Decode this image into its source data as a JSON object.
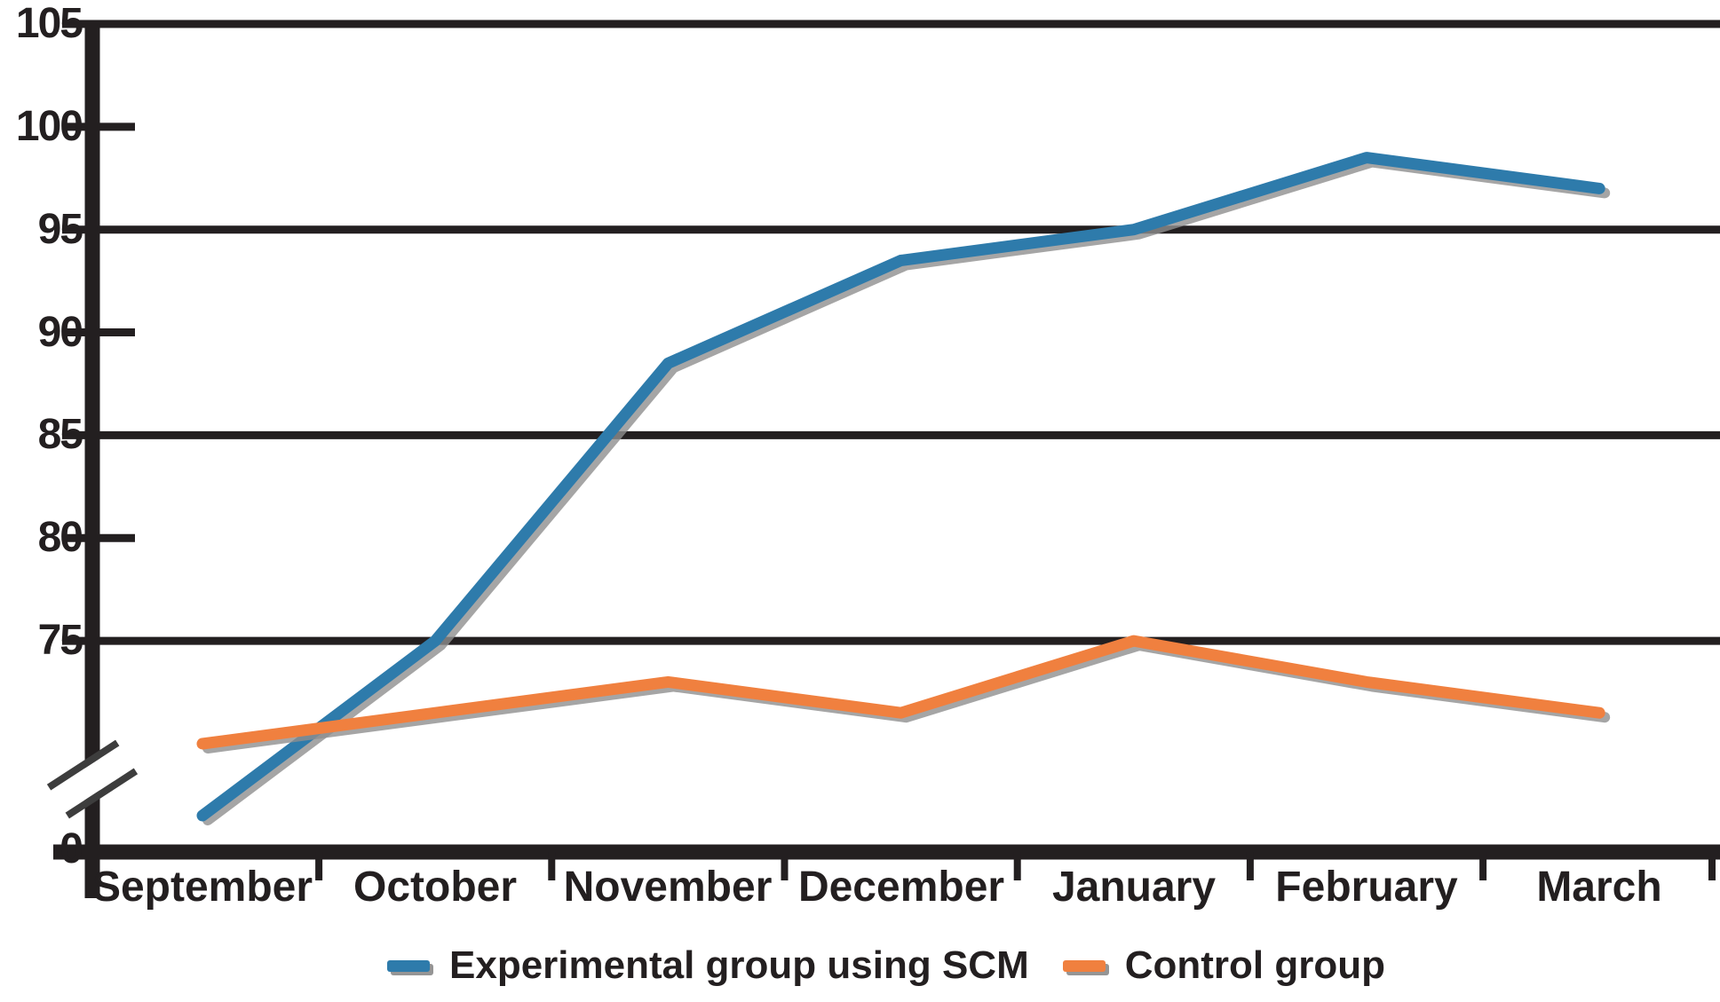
{
  "chart_data": {
    "type": "line",
    "title": "",
    "xlabel": "",
    "ylabel": "",
    "categories": [
      "September",
      "October",
      "November",
      "December",
      "January",
      "February",
      "March"
    ],
    "series": [
      {
        "name": "Experimental group using SCM",
        "color": "#2e7bab",
        "values": [
          66.5,
          75,
          88.5,
          93.5,
          95,
          98.5,
          97
        ]
      },
      {
        "name": "Control group",
        "color": "#f0803f",
        "values": [
          70,
          71.5,
          73,
          71.5,
          75,
          73,
          71.5
        ]
      }
    ],
    "y_axis": {
      "tick_labels": [
        "105",
        "100",
        "95",
        "90",
        "85",
        "80",
        "75",
        "0"
      ],
      "tick_values": [
        105,
        100,
        95,
        90,
        85,
        80,
        75,
        0
      ],
      "gridline_values": [
        105,
        95,
        85,
        75
      ],
      "minor_tick_values": [
        100,
        90,
        80
      ],
      "ylim": [
        0,
        105
      ],
      "axis_break": true,
      "break_between": [
        0,
        75
      ]
    },
    "x_axis": {
      "tick_style": "boundary-ticks-between-categories"
    },
    "grid": "horizontal-alternating",
    "legend_position": "bottom-center",
    "colors": {
      "axis": "#231f20",
      "halo": "#8f8f8f",
      "text": "#231f20"
    }
  }
}
